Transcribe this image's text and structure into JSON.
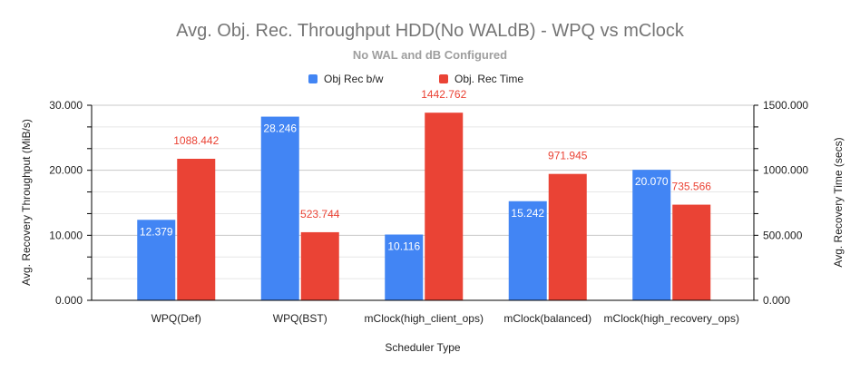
{
  "chart_data": {
    "type": "bar",
    "title": "Avg. Obj. Rec. Throughput HDD(No WALdB) - WPQ vs mClock",
    "subtitle": "No WAL and dB Configured",
    "xlabel": "Scheduler Type",
    "ylabel": "Avg. Recovery Throughput (MiB/s)",
    "y2label": "Avg. Recovery Time (secs)",
    "categories": [
      "WPQ(Def)",
      "WPQ(BST)",
      "mClock(high_client_ops)",
      "mClock(balanced)",
      "mClock(high_recovery_ops)"
    ],
    "series": [
      {
        "name": "Obj Rec b/w",
        "axis": "left",
        "color": "#4285f4",
        "values": [
          12.379,
          28.246,
          10.116,
          15.242,
          20.07
        ],
        "labels": [
          "12.379",
          "28.246",
          "10.116",
          "15.242",
          "20.070"
        ]
      },
      {
        "name": "Obj. Rec Time",
        "axis": "right",
        "color": "#ea4335",
        "values": [
          1088.442,
          523.744,
          1442.762,
          971.945,
          735.566
        ],
        "labels": [
          "1088.442",
          "523.744",
          "1442.762",
          "971.945",
          "735.566"
        ]
      }
    ],
    "ylim": [
      0,
      30
    ],
    "y2lim": [
      0,
      1500
    ],
    "yticks": [
      "0.000",
      "10.000",
      "20.000",
      "30.000"
    ],
    "y2ticks": [
      "0.000",
      "500.000",
      "1000.000",
      "1500.000"
    ],
    "grid": true,
    "legend": "top"
  }
}
